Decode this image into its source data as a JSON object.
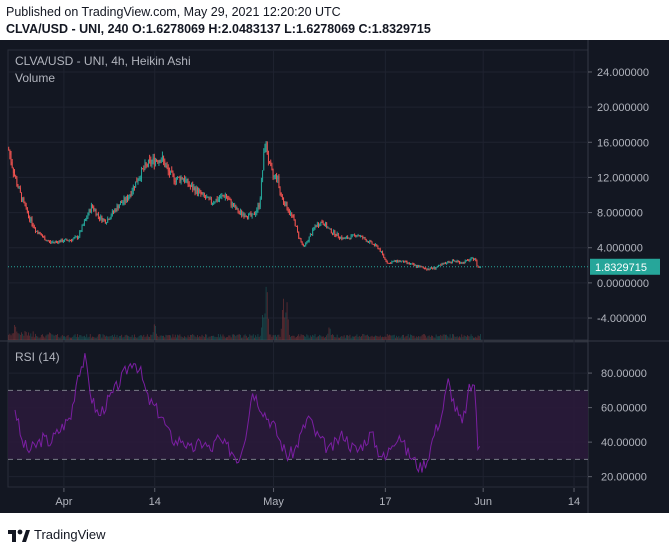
{
  "header": {
    "published": "Published on TradingView.com, May 29, 2021 12:20:20 UTC",
    "ohlc_line": "CLVA/USD - UNI, 240  O:1.6278069 H:2.0483137 L:1.6278069 C:1.8329715"
  },
  "footer": {
    "brand": "TradingView"
  },
  "colors": {
    "background": "#131722",
    "up": "#26a69a",
    "down": "#ef5350",
    "rsi_line": "#7b1fa2",
    "rsi_band": "#2a1a3a",
    "price_line": "#26a69a",
    "grid": "#1f2330",
    "axis_text": "#b2b5be"
  },
  "chart_data": [
    {
      "type": "candlestick",
      "title": "CLVA/USD - UNI, 4h, Heikin Ashi",
      "subtitle": "Volume",
      "y_ticks": [
        24,
        20,
        16,
        12,
        8,
        4,
        0,
        -4
      ],
      "y_tick_labels": [
        "24.000000",
        "20.000000",
        "16.000000",
        "12.000000",
        "8.000000",
        "4.000000",
        "0.0000000",
        "-4.000000"
      ],
      "ylim": [
        -6.5,
        26.5
      ],
      "last_price": 1.8329715,
      "last_price_label": "1.8329715",
      "x_ticks": [
        "Apr",
        "14",
        "May",
        "17",
        "Jun",
        "14"
      ],
      "x_tick_days": [
        7,
        20,
        37,
        53,
        67,
        80
      ],
      "xlim": [
        -1,
        82
      ],
      "series_keypoints": [
        [
          -1,
          15.5
        ],
        [
          0,
          12
        ],
        [
          1,
          9.5
        ],
        [
          2,
          7.5
        ],
        [
          3,
          6
        ],
        [
          4,
          5.2
        ],
        [
          5,
          4.6
        ],
        [
          6,
          4.7
        ],
        [
          7,
          4.8
        ],
        [
          8,
          4.9
        ],
        [
          9,
          5.2
        ],
        [
          10,
          7
        ],
        [
          11,
          8.8
        ],
        [
          12,
          7.5
        ],
        [
          13,
          7
        ],
        [
          14,
          8
        ],
        [
          15,
          9
        ],
        [
          16,
          9.5
        ],
        [
          17,
          11
        ],
        [
          18,
          12.5
        ],
        [
          19,
          13.5
        ],
        [
          20,
          14
        ],
        [
          21,
          14.2
        ],
        [
          22,
          12.5
        ],
        [
          23,
          11.8
        ],
        [
          24,
          12
        ],
        [
          25,
          11
        ],
        [
          26,
          10.5
        ],
        [
          27,
          9.8
        ],
        [
          28,
          9.2
        ],
        [
          29,
          9.5
        ],
        [
          30,
          10
        ],
        [
          31,
          9
        ],
        [
          32,
          8
        ],
        [
          33,
          7.8
        ],
        [
          34,
          7.5
        ],
        [
          35,
          9
        ],
        [
          35.8,
          16.2
        ],
        [
          36.5,
          13
        ],
        [
          37,
          12
        ],
        [
          37.5,
          12.2
        ],
        [
          38,
          10
        ],
        [
          39,
          8.5
        ],
        [
          40,
          7
        ],
        [
          40.5,
          5.5
        ],
        [
          41.3,
          4
        ],
        [
          42,
          5
        ],
        [
          43,
          6.5
        ],
        [
          44,
          7
        ],
        [
          45,
          6
        ],
        [
          46,
          5.5
        ],
        [
          47,
          5
        ],
        [
          48,
          5.2
        ],
        [
          49,
          5.5
        ],
        [
          50,
          5
        ],
        [
          51,
          4.5
        ],
        [
          52,
          4
        ],
        [
          52.6,
          3.2
        ],
        [
          53,
          2.6
        ],
        [
          53.5,
          2.2
        ],
        [
          54,
          2.4
        ],
        [
          55,
          2.5
        ],
        [
          56,
          2.3
        ],
        [
          57,
          2
        ],
        [
          58,
          1.8
        ],
        [
          59,
          1.6
        ],
        [
          60,
          1.7
        ],
        [
          61,
          2
        ],
        [
          62,
          2.4
        ],
        [
          63,
          2.5
        ],
        [
          64,
          2.3
        ],
        [
          65,
          2.6
        ],
        [
          65.8,
          2.8
        ],
        [
          66.2,
          1.8
        ],
        [
          66.7,
          1.83
        ]
      ],
      "volume_peaks": [
        [
          36,
          0.85
        ],
        [
          38.4,
          0.6
        ],
        [
          38.9,
          0.55
        ],
        [
          35.5,
          0.4
        ],
        [
          20,
          0.25
        ],
        [
          0,
          0.2
        ],
        [
          45,
          0.2
        ],
        [
          5,
          0.12
        ]
      ]
    },
    {
      "type": "line",
      "title": "RSI (14)",
      "y_ticks": [
        80,
        60,
        40,
        20
      ],
      "y_tick_labels": [
        "80.00000",
        "60.00000",
        "40.00000",
        "20.00000"
      ],
      "ylim": [
        14,
        98
      ],
      "band_upper": 70,
      "band_lower": 30,
      "last_value": 43,
      "keypoints": [
        [
          0,
          60
        ],
        [
          1,
          40
        ],
        [
          2,
          35
        ],
        [
          3,
          38
        ],
        [
          4,
          42
        ],
        [
          5,
          40
        ],
        [
          6,
          45
        ],
        [
          7,
          50
        ],
        [
          8,
          55
        ],
        [
          9,
          80
        ],
        [
          10,
          88
        ],
        [
          11,
          65
        ],
        [
          12,
          55
        ],
        [
          13,
          62
        ],
        [
          14,
          68
        ],
        [
          15,
          75
        ],
        [
          16,
          82
        ],
        [
          17,
          88
        ],
        [
          18,
          80
        ],
        [
          19,
          65
        ],
        [
          20,
          60
        ],
        [
          21,
          55
        ],
        [
          22,
          45
        ],
        [
          23,
          40
        ],
        [
          24,
          42
        ],
        [
          25,
          35
        ],
        [
          26,
          38
        ],
        [
          27,
          40
        ],
        [
          28,
          35
        ],
        [
          29,
          42
        ],
        [
          30,
          38
        ],
        [
          31,
          35
        ],
        [
          32,
          30
        ],
        [
          33,
          45
        ],
        [
          34,
          70
        ],
        [
          35,
          62
        ],
        [
          36,
          55
        ],
        [
          37,
          50
        ],
        [
          38,
          40
        ],
        [
          39,
          32
        ],
        [
          40,
          35
        ],
        [
          41,
          45
        ],
        [
          42,
          55
        ],
        [
          43,
          45
        ],
        [
          44,
          40
        ],
        [
          45,
          35
        ],
        [
          46,
          40
        ],
        [
          47,
          45
        ],
        [
          48,
          38
        ],
        [
          49,
          35
        ],
        [
          50,
          40
        ],
        [
          51,
          45
        ],
        [
          52,
          35
        ],
        [
          53,
          30
        ],
        [
          54,
          40
        ],
        [
          55,
          45
        ],
        [
          56,
          35
        ],
        [
          57,
          30
        ],
        [
          58,
          25
        ],
        [
          59,
          30
        ],
        [
          60,
          45
        ],
        [
          61,
          55
        ],
        [
          62,
          75
        ],
        [
          63,
          60
        ],
        [
          64,
          50
        ],
        [
          65,
          70
        ],
        [
          65.8,
          75
        ],
        [
          66.2,
          35
        ],
        [
          66.7,
          43
        ]
      ]
    }
  ]
}
